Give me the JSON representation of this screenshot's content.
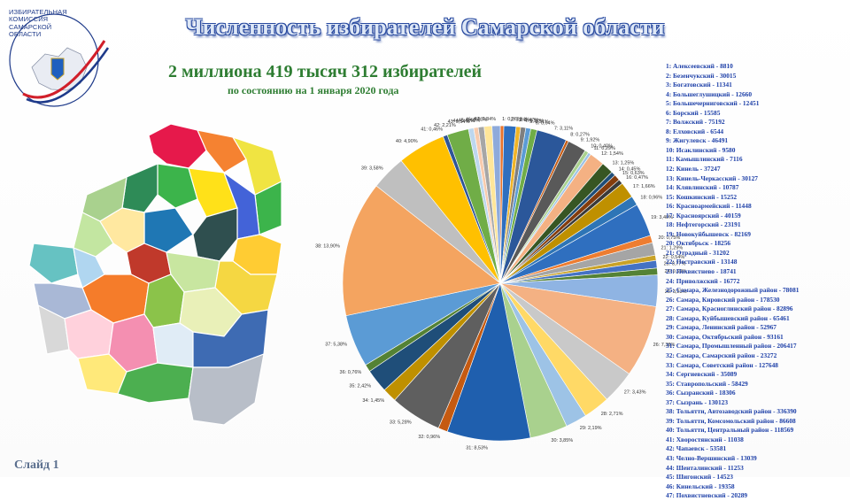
{
  "slide": {
    "logo_lines": [
      "ИЗБИРАТЕЛЬНАЯ",
      "КОМИССИЯ",
      "САМАРСКОЙ",
      "ОБЛАСТИ"
    ],
    "title": "Численность избирателей Самарской области",
    "headline": "2 миллиона 419 тысяч 312 избирателей",
    "subline": "по состоянию на 1 января 2020 года",
    "slide_label": "Слайд 1"
  },
  "legend": [
    "1: Алексеевский - 8810",
    "2: Безенчукский - 30015",
    "3: Богатовский - 11341",
    "4: Большеглушицкий - 12660",
    "5: Большечерниговский - 12451",
    "6: Борский - 15585",
    "7: Волжский - 75192",
    "8: Елховский - 6544",
    "9: Жигулевск - 46491",
    "10: Исаклинский - 9580",
    "11: Камышлинский - 7116",
    "12: Кинель - 37247",
    "13: Кинель-Черкасский - 30127",
    "14: Клявлинский - 10787",
    "15: Кошкинский - 15252",
    "16: Красноармейский - 11448",
    "17: Красноярский - 40159",
    "18: Нефтегорский - 23191",
    "19: Новокуйбышевск - 82169",
    "20: Октябрьск - 18256",
    "21: Отрадный - 31202",
    "22: Пестравский - 13148",
    "23: Похвистнево - 18741",
    "24: Приволжский - 16772",
    "25: Самара, Железнодорожный район - 78081",
    "26: Самара, Кировский район - 178530",
    "27: Самара, Красноглинский район - 82896",
    "28: Самара, Куйбышевский район - 65461",
    "29: Самара, Ленинский район - 52967",
    "30: Самара, Октябрьский район - 93161",
    "31: Самара, Промышленный район - 206417",
    "32: Самара, Самарский район - 23272",
    "33: Самара, Советский район - 127648",
    "34: Сергиевский - 35089",
    "35: Ставропольский - 58429",
    "36: Сызранский - 18306",
    "37: Сызрань - 130123",
    "38: Тольятти, Автозаводский район - 336390",
    "39: Тольятти, Комсомольский район - 86608",
    "40: Тольятти, Центральный район - 118569",
    "41: Хворостянский - 11038",
    "42: Чапаевск - 53581",
    "43: Челно-Вершинский - 13039",
    "44: Шенталинский - 11253",
    "45: Шигонский - 14523",
    "46: Кинельский - 19358",
    "47: Похвистневский - 20289"
  ],
  "chart_data": {
    "type": "pie",
    "title": "",
    "start_label": "1",
    "slices": [
      {
        "label": "1",
        "value": 8810,
        "pct": "0,36%",
        "color": "#e8732b"
      },
      {
        "label": "2",
        "value": 30015,
        "pct": "1,24%",
        "color": "#2f6fbf"
      },
      {
        "label": "3",
        "value": 11341,
        "pct": "0,47%",
        "color": "#f0b428"
      },
      {
        "label": "4",
        "value": 12660,
        "pct": "0,52%",
        "color": "#7f7f7f"
      },
      {
        "label": "5",
        "value": 12451,
        "pct": "0,51%",
        "color": "#5b9bd5"
      },
      {
        "label": "6",
        "value": 15585,
        "pct": "0,64%",
        "color": "#70ad47"
      },
      {
        "label": "7",
        "value": 75192,
        "pct": "3,11%",
        "color": "#2b579a"
      },
      {
        "label": "8",
        "value": 6544,
        "pct": "0,27%",
        "color": "#c55a11"
      },
      {
        "label": "9",
        "value": 46491,
        "pct": "1,92%",
        "color": "#595959"
      },
      {
        "label": "10",
        "value": 9580,
        "pct": "0,40%",
        "color": "#a9d18e"
      },
      {
        "label": "11",
        "value": 7116,
        "pct": "0,29%",
        "color": "#9dc3e6"
      },
      {
        "label": "12",
        "value": 37247,
        "pct": "1,54%",
        "color": "#f4b183"
      },
      {
        "label": "13",
        "value": 30127,
        "pct": "1,25%",
        "color": "#375623"
      },
      {
        "label": "14",
        "value": 10787,
        "pct": "0,45%",
        "color": "#1f4e79"
      },
      {
        "label": "15",
        "value": 15252,
        "pct": "0,63%",
        "color": "#843c0c"
      },
      {
        "label": "16",
        "value": 11448,
        "pct": "0,47%",
        "color": "#3a3a3a"
      },
      {
        "label": "17",
        "value": 40159,
        "pct": "1,66%",
        "color": "#bf9000"
      },
      {
        "label": "18",
        "value": 23191,
        "pct": "0,96%",
        "color": "#2e75b6"
      },
      {
        "label": "19",
        "value": 82169,
        "pct": "3,40%",
        "color": "#2f6fbf"
      },
      {
        "label": "20",
        "value": 18256,
        "pct": "0,75%",
        "color": "#ed7d31"
      },
      {
        "label": "21",
        "value": 31202,
        "pct": "1,29%",
        "color": "#a5a5a5"
      },
      {
        "label": "22",
        "value": 13148,
        "pct": "0,54%",
        "color": "#c9a227"
      },
      {
        "label": "23",
        "value": 18741,
        "pct": "0,77%",
        "color": "#4472c4"
      },
      {
        "label": "24",
        "value": 16772,
        "pct": "0,69%",
        "color": "#548235"
      },
      {
        "label": "25",
        "value": 78081,
        "pct": "3,23%",
        "color": "#8fb4e3"
      },
      {
        "label": "26",
        "value": 178530,
        "pct": "7,38%",
        "color": "#f4b183"
      },
      {
        "label": "27",
        "value": 82896,
        "pct": "3,43%",
        "color": "#c9c9c9"
      },
      {
        "label": "28",
        "value": 65461,
        "pct": "2,71%",
        "color": "#ffd966"
      },
      {
        "label": "29",
        "value": 52967,
        "pct": "2,19%",
        "color": "#9dc3e6"
      },
      {
        "label": "30",
        "value": 93161,
        "pct": "3,85%",
        "color": "#a9d18e"
      },
      {
        "label": "31",
        "value": 206417,
        "pct": "8,53%",
        "color": "#1f5fae"
      },
      {
        "label": "32",
        "value": 23272,
        "pct": "0,96%",
        "color": "#c55a11"
      },
      {
        "label": "33",
        "value": 127648,
        "pct": "5,28%",
        "color": "#5f5f5f"
      },
      {
        "label": "34",
        "value": 35089,
        "pct": "1,45%",
        "color": "#bf9000"
      },
      {
        "label": "35",
        "value": 58429,
        "pct": "2,42%",
        "color": "#1f4e79"
      },
      {
        "label": "36",
        "value": 18306,
        "pct": "0,76%",
        "color": "#548235"
      },
      {
        "label": "37",
        "value": 130123,
        "pct": "5,38%",
        "color": "#5b9bd5"
      },
      {
        "label": "38",
        "value": 336390,
        "pct": "13,90%",
        "color": "#f4a460"
      },
      {
        "label": "39",
        "value": 86608,
        "pct": "3,58%",
        "color": "#bfbfbf"
      },
      {
        "label": "40",
        "value": 118569,
        "pct": "4,90%",
        "color": "#ffc000"
      },
      {
        "label": "41",
        "value": 11038,
        "pct": "0,46%",
        "color": "#2f5597"
      },
      {
        "label": "42",
        "value": 53581,
        "pct": "2,21%",
        "color": "#70ad47"
      },
      {
        "label": "43",
        "value": 13039,
        "pct": "0,54%",
        "color": "#bdd7ee"
      },
      {
        "label": "44",
        "value": 11253,
        "pct": "0,47%",
        "color": "#f8cbad"
      },
      {
        "label": "45",
        "value": 14523,
        "pct": "0,60%",
        "color": "#a6a6a6"
      },
      {
        "label": "46",
        "value": 19358,
        "pct": "0,80%",
        "color": "#ffe699"
      },
      {
        "label": "47",
        "value": 20289,
        "pct": "0,84%",
        "color": "#8eaadb"
      }
    ]
  },
  "colors": {
    "title_fill": "#dde7f6",
    "title_outline": "#2a4ba0",
    "headline": "#2e7d32",
    "legend_text": "#1e40a8"
  }
}
